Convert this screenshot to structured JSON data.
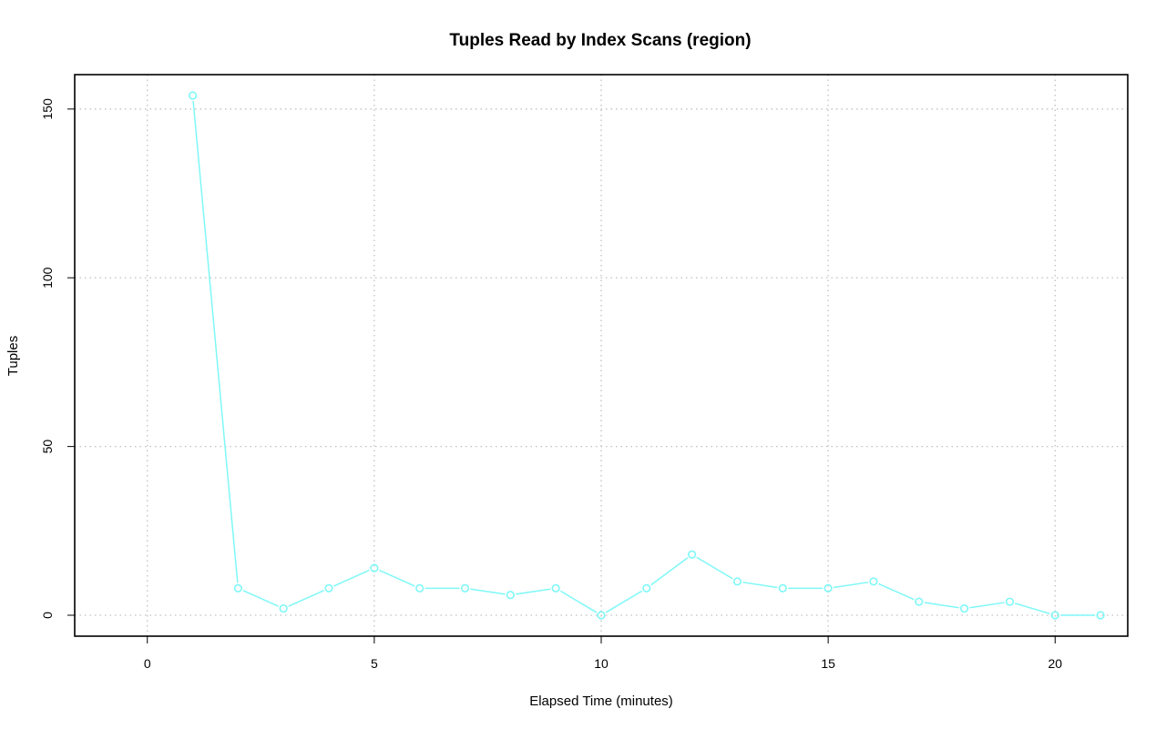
{
  "chart_data": {
    "type": "line",
    "title": "Tuples Read by Index Scans (region)",
    "xlabel": "Elapsed Time (minutes)",
    "ylabel": "Tuples",
    "xlim": [
      -1.6,
      21.6
    ],
    "ylim": [
      -6.2,
      160.2
    ],
    "x_ticks": [
      0,
      5,
      10,
      15,
      20
    ],
    "y_ticks": [
      0,
      50,
      100,
      150
    ],
    "grid": true,
    "series_color": "#7ff7f7",
    "series": [
      {
        "x": [
          1,
          2,
          3,
          4,
          5,
          6,
          7,
          8,
          9,
          10,
          11,
          12,
          13,
          14,
          15,
          16,
          17,
          18,
          19,
          20,
          21
        ],
        "values": [
          154,
          8,
          2,
          8,
          14,
          8,
          8,
          6,
          8,
          0,
          8,
          18,
          10,
          8,
          8,
          10,
          4,
          2,
          4,
          0,
          0
        ]
      }
    ]
  }
}
